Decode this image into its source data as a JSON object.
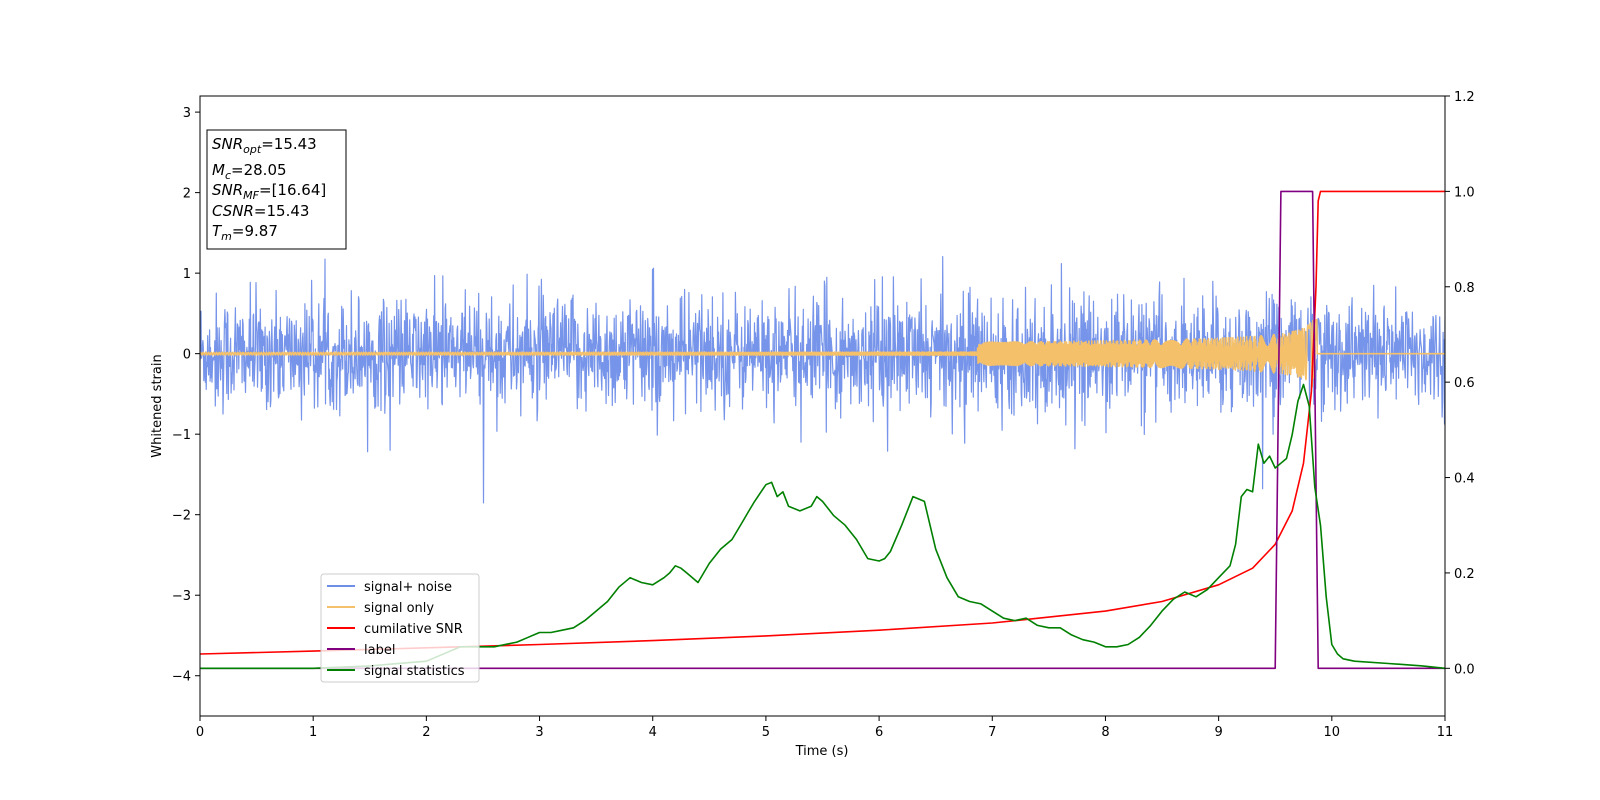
{
  "chart_data": {
    "type": "line",
    "xlabel": "Time (s)",
    "ylabel": "Whitened strain",
    "xlim": [
      0,
      11
    ],
    "ylim": [
      -4.5,
      3.2
    ],
    "y2lim": [
      -0.1,
      1.2
    ],
    "x_ticks": [
      0,
      1,
      2,
      3,
      4,
      5,
      6,
      7,
      8,
      9,
      10,
      11
    ],
    "y_ticks": [
      3,
      2,
      1,
      0,
      -1,
      -2,
      -3,
      -4
    ],
    "y_tick_labels": [
      "3",
      "2",
      "1",
      "0",
      "−1",
      "−2",
      "−3",
      "−4"
    ],
    "y2_ticks": [
      0.0,
      0.2,
      0.4,
      0.6,
      0.8,
      1.0,
      1.2
    ],
    "y2_tick_labels": [
      "0.0",
      "0.2",
      "0.4",
      "0.6",
      "0.8",
      "1.0",
      "1.2"
    ],
    "grid": false,
    "legend_position": "lower-left",
    "info_box": [
      {
        "var": "SNR",
        "sub": "opt",
        "value": "=15.43"
      },
      {
        "var": "M",
        "sub": "c",
        "value": "=28.05"
      },
      {
        "var": "SNR",
        "sub": "MF",
        "value": "=[16.64]"
      },
      {
        "var": "CSNR",
        "sub": "",
        "value": "=15.43"
      },
      {
        "var": "T",
        "sub": "m",
        "value": "=9.87"
      }
    ],
    "series": [
      {
        "name": "signal+ noise",
        "color": "#6f8ee8",
        "axis": "left",
        "kind": "noise",
        "envelope_std": 0.33,
        "range_x": [
          0,
          11
        ]
      },
      {
        "name": "signal only",
        "color": "#f5c06a",
        "axis": "left",
        "kind": "chirp",
        "merger_time": 9.87,
        "peak_amplitude": 0.42
      },
      {
        "name": "cumilative SNR",
        "color": "#ff0000",
        "axis": "right",
        "x": [
          0,
          1,
          2,
          3,
          4,
          5,
          6,
          7,
          8,
          8.5,
          9,
          9.3,
          9.5,
          9.65,
          9.75,
          9.82,
          9.86,
          9.88,
          9.9,
          10,
          11
        ],
        "y": [
          0.03,
          0.036,
          0.043,
          0.05,
          0.058,
          0.068,
          0.08,
          0.095,
          0.12,
          0.14,
          0.175,
          0.21,
          0.26,
          0.33,
          0.43,
          0.58,
          0.8,
          0.98,
          1.0,
          1.0,
          1.0
        ]
      },
      {
        "name": "label",
        "color": "#800080",
        "axis": "right",
        "x": [
          0,
          9.5,
          9.55,
          9.83,
          9.88,
          11
        ],
        "y": [
          0,
          0,
          1,
          1,
          0,
          0
        ]
      },
      {
        "name": "signal statistics",
        "color": "#008000",
        "axis": "right",
        "x": [
          0,
          0.5,
          1,
          1.5,
          2,
          2.3,
          2.6,
          2.8,
          2.9,
          3.0,
          3.1,
          3.2,
          3.3,
          3.4,
          3.5,
          3.6,
          3.7,
          3.8,
          3.9,
          4.0,
          4.1,
          4.15,
          4.2,
          4.25,
          4.3,
          4.4,
          4.5,
          4.6,
          4.7,
          4.8,
          4.85,
          4.9,
          5.0,
          5.05,
          5.1,
          5.15,
          5.2,
          5.3,
          5.4,
          5.45,
          5.5,
          5.6,
          5.7,
          5.8,
          5.9,
          6.0,
          6.05,
          6.1,
          6.2,
          6.3,
          6.4,
          6.5,
          6.6,
          6.7,
          6.8,
          6.9,
          7.0,
          7.1,
          7.2,
          7.3,
          7.4,
          7.5,
          7.6,
          7.7,
          7.8,
          7.9,
          8.0,
          8.1,
          8.2,
          8.3,
          8.4,
          8.5,
          8.6,
          8.7,
          8.8,
          8.9,
          9.0,
          9.1,
          9.15,
          9.2,
          9.25,
          9.3,
          9.35,
          9.4,
          9.45,
          9.5,
          9.55,
          9.6,
          9.65,
          9.7,
          9.75,
          9.8,
          9.85,
          9.9,
          9.95,
          10.0,
          10.05,
          10.1,
          10.2,
          10.5,
          10.8,
          11.0
        ],
        "y": [
          0.0,
          0.0,
          0.0,
          0.005,
          0.015,
          0.045,
          0.045,
          0.055,
          0.065,
          0.075,
          0.075,
          0.08,
          0.085,
          0.1,
          0.12,
          0.14,
          0.17,
          0.19,
          0.18,
          0.175,
          0.19,
          0.2,
          0.215,
          0.21,
          0.2,
          0.18,
          0.22,
          0.25,
          0.27,
          0.31,
          0.33,
          0.35,
          0.385,
          0.39,
          0.36,
          0.37,
          0.34,
          0.33,
          0.34,
          0.36,
          0.35,
          0.32,
          0.3,
          0.27,
          0.23,
          0.225,
          0.23,
          0.245,
          0.3,
          0.36,
          0.35,
          0.25,
          0.19,
          0.15,
          0.14,
          0.135,
          0.12,
          0.105,
          0.1,
          0.105,
          0.09,
          0.085,
          0.085,
          0.07,
          0.06,
          0.055,
          0.045,
          0.045,
          0.05,
          0.065,
          0.09,
          0.12,
          0.145,
          0.16,
          0.15,
          0.165,
          0.19,
          0.215,
          0.26,
          0.36,
          0.375,
          0.37,
          0.47,
          0.43,
          0.445,
          0.42,
          0.43,
          0.44,
          0.49,
          0.56,
          0.595,
          0.55,
          0.38,
          0.3,
          0.15,
          0.05,
          0.03,
          0.02,
          0.015,
          0.01,
          0.005,
          0.0
        ]
      }
    ]
  }
}
